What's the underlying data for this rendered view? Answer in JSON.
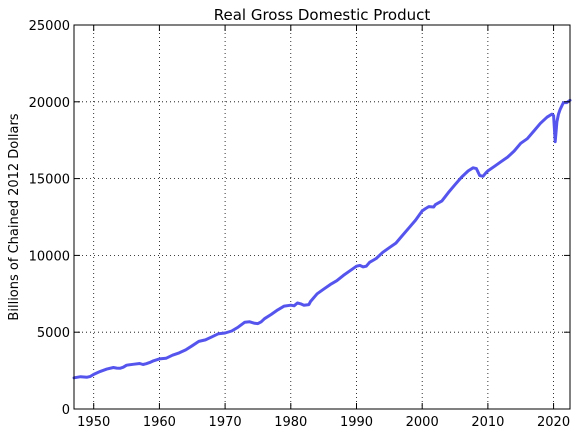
{
  "chart_data": {
    "type": "line",
    "title": "Real Gross Domestic Product",
    "xlabel": "",
    "ylabel": "Billions of Chained 2012 Dollars",
    "xlim": [
      1947,
      2022.5
    ],
    "ylim": [
      0,
      25000
    ],
    "xticks": [
      1950,
      1960,
      1970,
      1980,
      1990,
      2000,
      2010,
      2020
    ],
    "yticks": [
      0,
      5000,
      10000,
      15000,
      20000,
      25000
    ],
    "grid": true,
    "line_color": "#5555ee",
    "series": [
      {
        "x": [
          1947.0,
          1948.0,
          1949.0,
          1949.5,
          1950.0,
          1951.0,
          1952.0,
          1953.0,
          1953.5,
          1954.0,
          1954.5,
          1955.0,
          1956.0,
          1957.0,
          1957.5,
          1958.0,
          1958.5,
          1959.0,
          1960.0,
          1961.0,
          1962.0,
          1963.0,
          1964.0,
          1965.0,
          1966.0,
          1967.0,
          1968.0,
          1969.0,
          1970.0,
          1971.0,
          1972.0,
          1973.0,
          1973.75,
          1974.5,
          1975.0,
          1975.5,
          1976.0,
          1977.0,
          1978.0,
          1979.0,
          1980.0,
          1980.5,
          1981.0,
          1981.5,
          1982.0,
          1982.75,
          1983.0,
          1984.0,
          1985.0,
          1986.0,
          1987.0,
          1988.0,
          1989.0,
          1990.0,
          1990.5,
          1991.0,
          1991.5,
          1992.0,
          1993.0,
          1994.0,
          1995.0,
          1996.0,
          1997.0,
          1998.0,
          1999.0,
          2000.0,
          2000.5,
          2001.0,
          2001.75,
          2002.0,
          2003.0,
          2004.0,
          2005.0,
          2006.0,
          2007.0,
          2007.75,
          2008.25,
          2008.75,
          2009.25,
          2009.75,
          2010.0,
          2011.0,
          2012.0,
          2013.0,
          2014.0,
          2015.0,
          2016.0,
          2017.0,
          2018.0,
          2019.0,
          2019.75,
          2020.0,
          2020.25,
          2020.5,
          2020.75,
          2021.0,
          2021.5,
          2022.0,
          2022.5
        ],
        "values": [
          2030,
          2100,
          2070,
          2120,
          2250,
          2450,
          2600,
          2700,
          2660,
          2650,
          2720,
          2850,
          2910,
          2960,
          2900,
          2950,
          3020,
          3120,
          3260,
          3300,
          3500,
          3650,
          3850,
          4120,
          4400,
          4500,
          4700,
          4900,
          4950,
          5080,
          5330,
          5650,
          5680,
          5580,
          5560,
          5680,
          5880,
          6150,
          6450,
          6700,
          6760,
          6720,
          6900,
          6850,
          6760,
          6800,
          7000,
          7500,
          7800,
          8100,
          8350,
          8700,
          9000,
          9300,
          9350,
          9250,
          9300,
          9550,
          9800,
          10200,
          10500,
          10800,
          11300,
          11800,
          12300,
          12900,
          13050,
          13180,
          13150,
          13300,
          13550,
          14100,
          14600,
          15100,
          15500,
          15700,
          15650,
          15200,
          15150,
          15400,
          15500,
          15800,
          16100,
          16400,
          16800,
          17300,
          17600,
          18100,
          18600,
          19000,
          19200,
          19100,
          17400,
          18700,
          19200,
          19500,
          19950,
          19950,
          20100
        ]
      }
    ]
  }
}
